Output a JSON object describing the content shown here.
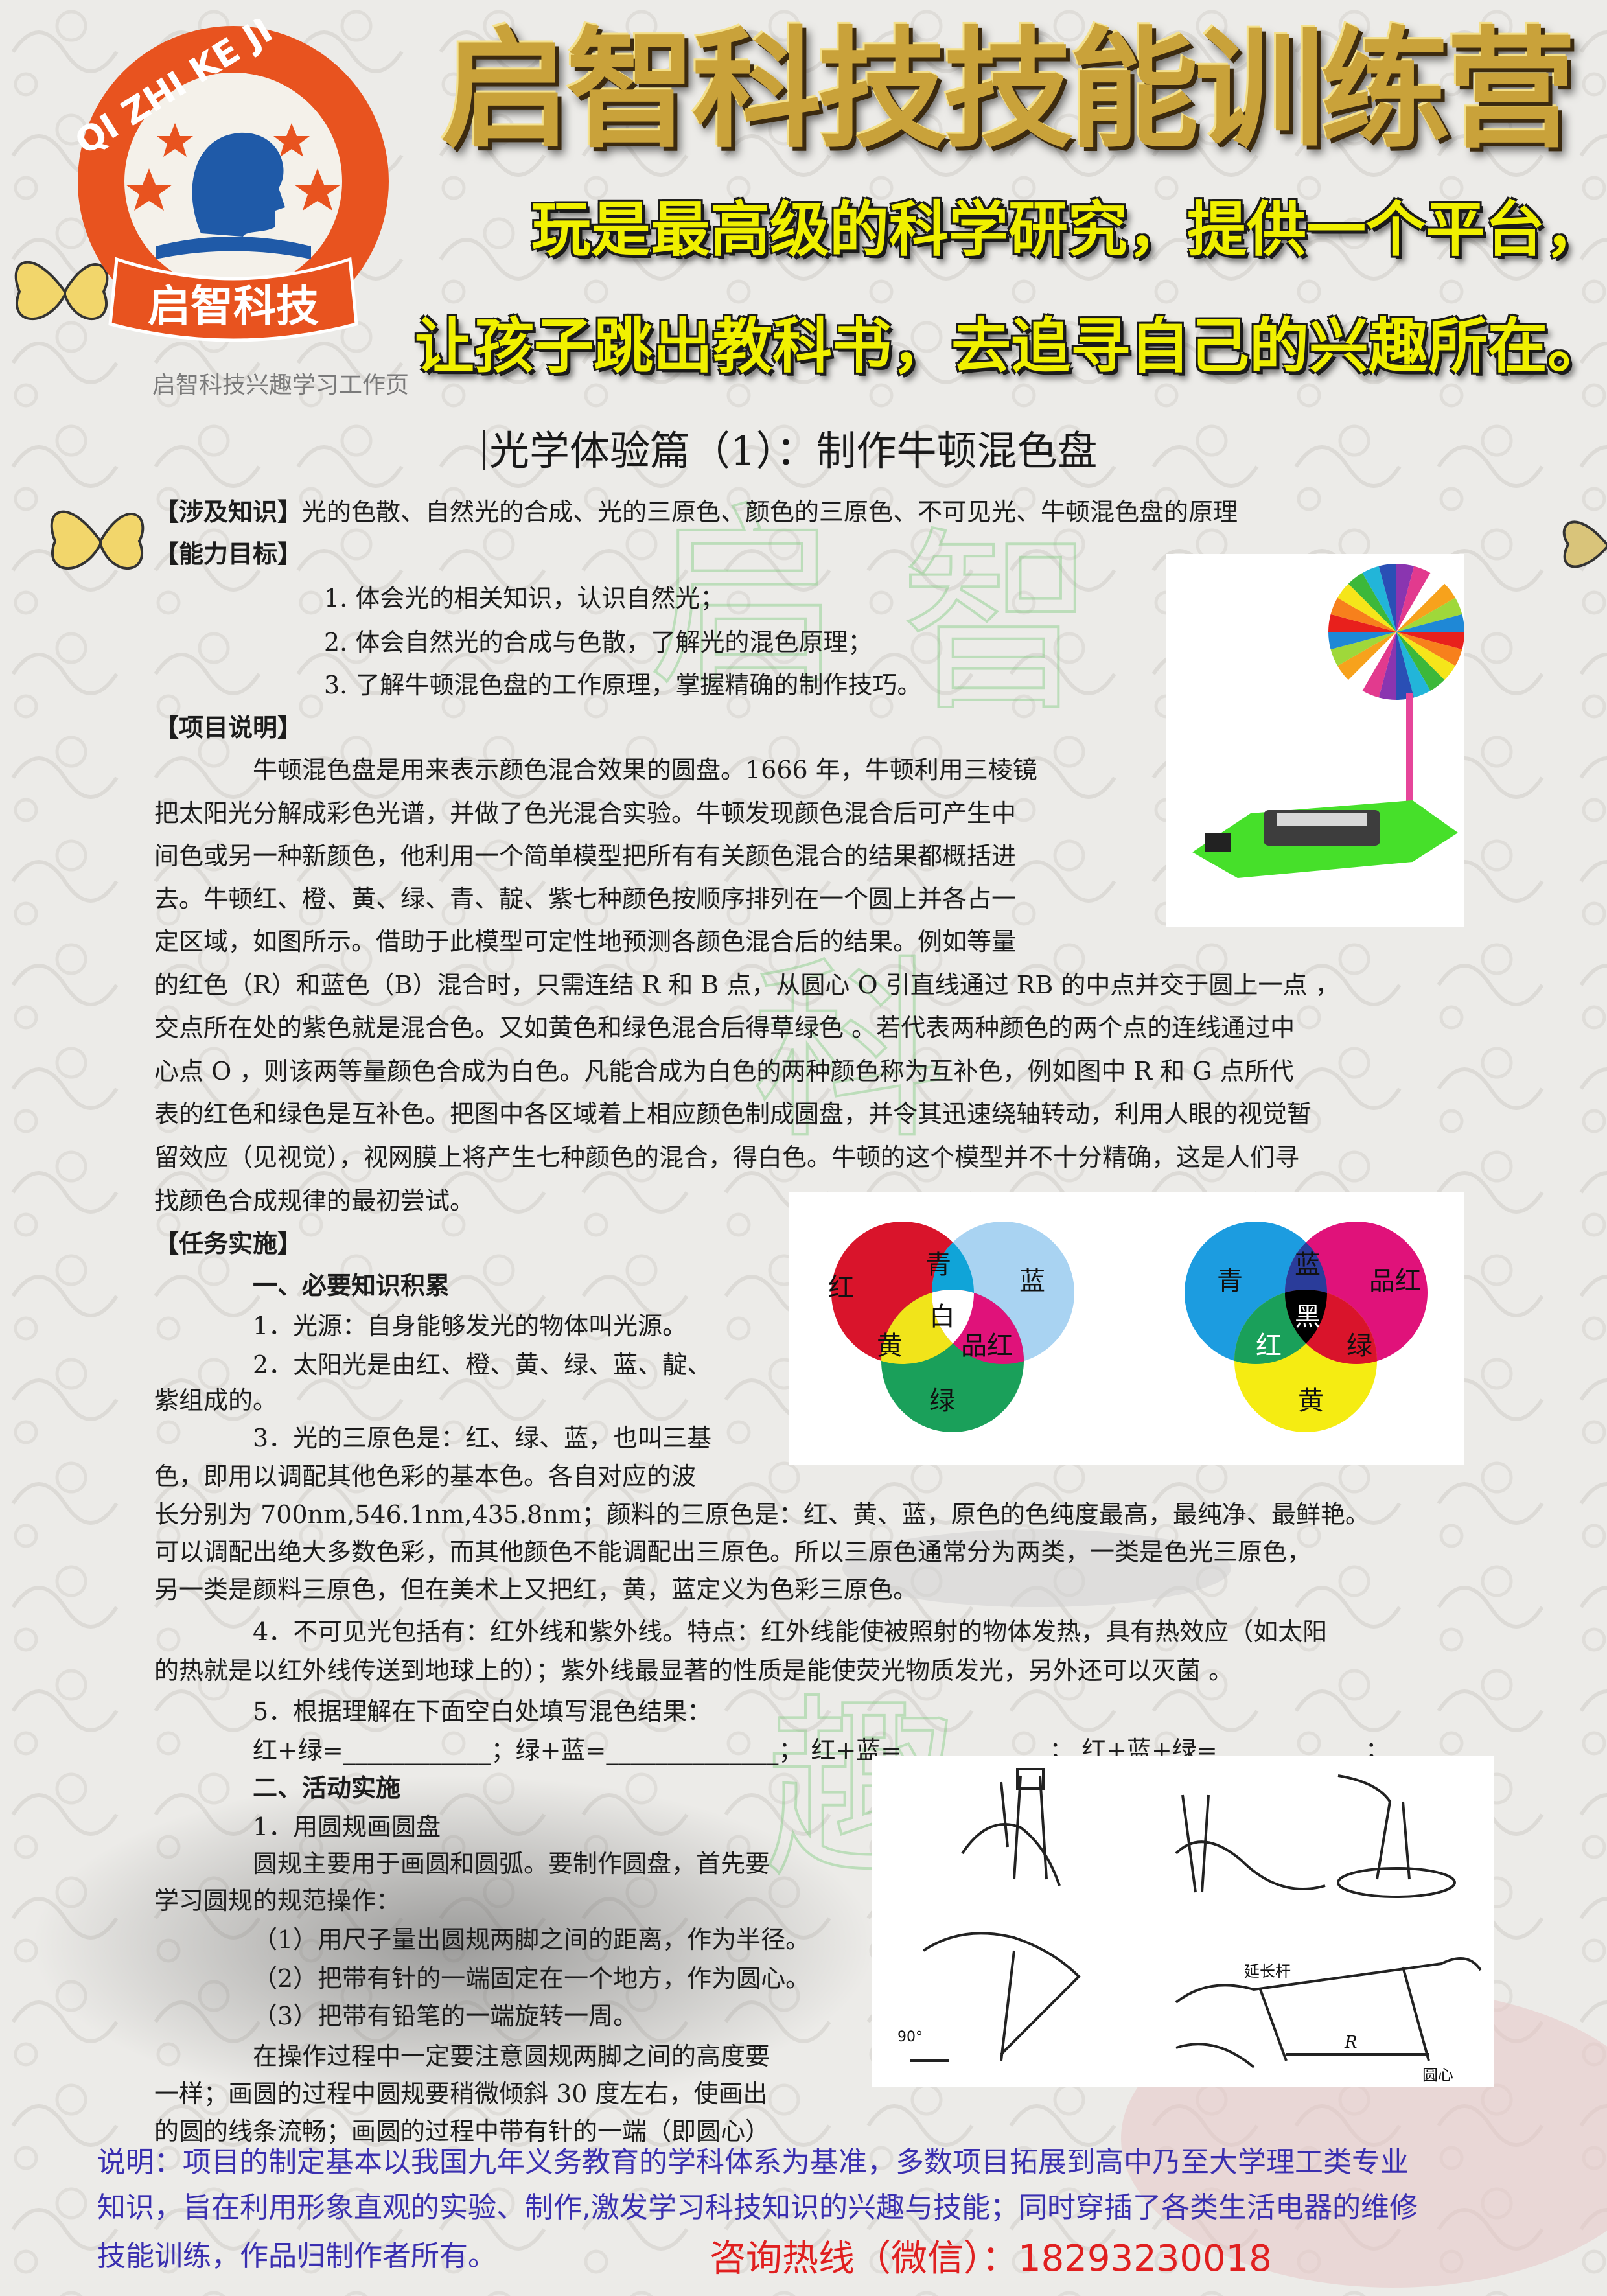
{
  "header": {
    "logo_ring_text": "QI ZHI KE JI",
    "logo_banner": "启智科技",
    "title": "启智科技技能训练营",
    "slogan_line1": "玩是最高级的科学研究，提供一个平台，",
    "slogan_line2": "让孩子跳出教科书，去追寻自己的兴趣所在。",
    "subcaption": "启智科技兴趣学习工作页"
  },
  "doc": {
    "title": "光学体验篇（1）：制作牛顿混色盘"
  },
  "sections": {
    "knowledge_label": "【涉及知识】",
    "knowledge_text": "光的色散、自然光的合成、光的三原色、颜色的三原色、不可见光、牛顿混色盘的原理",
    "goals_label": "【能力目标】",
    "goals": [
      "1.   体会光的相关知识，认识自然光；",
      "2.   体会自然光的合成与色散，了解光的混色原理；",
      "3.   了解牛顿混色盘的工作原理，掌握精确的制作技巧。"
    ],
    "desc_label": "【项目说明】",
    "desc_lines": [
      "牛顿混色盘是用来表示颜色混合效果的圆盘。1666  年，牛顿利用三棱镜",
      "把太阳光分解成彩色光谱，并做了色光混合实验。牛顿发现颜色混合后可产生中",
      "间色或另一种新颜色，他利用一个简单模型把所有有关颜色混合的结果都概括进",
      "去。牛顿红、橙、黄、绿、青、靛、紫七种颜色按顺序排列在一个圆上并各占一",
      "定区域，如图所示。借助于此模型可定性地预测各颜色混合后的结果。例如等量",
      "的红色（R）和蓝色（B）混合时，只需连结 R 和 B 点，从圆心 O 引直线通过 RB 的中点并交于圆上一点 ，",
      "交点所在处的紫色就是混合色。又如黄色和绿色混合后得草绿色 。若代表两种颜色的两个点的连线通过中",
      "心点 O ，则该两等量颜色合成为白色。凡能合成为白色的两种颜色称为互补色，例如图中 R  和 G 点所代",
      "表的红色和绿色是互补色。把图中各区域着上相应颜色制成圆盘，并令其迅速绕轴转动，利用人眼的视觉暂",
      "留效应（见视觉），视网膜上将产生七种颜色的混合，得白色。牛顿的这个模型并不十分精确，这是人们寻",
      "找颜色合成规律的最初尝试。"
    ],
    "task_label": "【任务实施】",
    "sub1": "一、必要知识积累",
    "know_lines": [
      "1．光源：自身能够发光的物体叫光源。",
      "2．太阳光是由红、橙、黄、绿、蓝、靛、",
      "紫组成的。",
      "3．光的三原色是：红、绿、蓝，也叫三基",
      "色，即用以调配其他色彩的基本色。各自对应的波",
      "长分别为 700nm,546.1nm,435.8nm；颜料的三原色是：红、黄、蓝，原色的色纯度最高，最纯净、最鲜艳。",
      "可以调配出绝大多数色彩，而其他颜色不能调配出三原色。所以三原色通常分为两类，一类是色光三原色，",
      "另一类是颜料三原色，但在美术上又把红，黄，蓝定义为色彩三原色。",
      "4．不可见光包括有：红外线和紫外线。特点：红外线能使被照射的物体发热，具有热效应（如太阳",
      "的热就是以红外线传送到地球上的）；紫外线最显著的性质是能使荧光物质发光，另外还可以灭菌  。",
      "5．根据理解在下面空白处填写混色结果：",
      "红+绿=____________；绿+蓝=______________；  红+蓝=____________；  红+蓝+绿=____________；"
    ],
    "sub2": "二、活动实施",
    "act_lines": [
      "1．用圆规画圆盘",
      "圆规主要用于画圆和圆弧。要制作圆盘，首先要",
      "学习圆规的规范操作：",
      "（1）用尺子量出圆规两脚之间的距离，作为半径。",
      "（2）把带有针的一端固定在一个地方，作为圆心。",
      "（3）把带有铅笔的一端旋转一周。",
      "在操作过程中一定要注意圆规两脚之间的高度要",
      "一样；画圆的过程中圆规要稍微倾斜 30 度左右，使画出",
      "的圆的线条流畅；画圆的过程中带有针的一端（即圆心）"
    ]
  },
  "venn_light": {
    "red": "红",
    "cyan": "青",
    "blue": "蓝",
    "white": "白",
    "yellow": "黄",
    "magenta": "品红",
    "green": "绿"
  },
  "venn_pigment": {
    "cyan": "青",
    "blue": "蓝",
    "magenta": "品红",
    "black": "黑",
    "red": "红",
    "green": "绿",
    "yellow": "黄"
  },
  "compass": {
    "ext_label": "延长杆",
    "r_label": "R",
    "center_label": "圆心",
    "angle_label": "90°"
  },
  "watermark_chars": [
    "启",
    "智",
    "科",
    "技",
    "趣"
  ],
  "footer": {
    "line1": "说明：项目的制定基本以我国九年义务教育的学科体系为基准，多数项目拓展到高中乃至大学理工类专业",
    "line2": "知识，旨在利用形象直观的实验、制作,激发学习科技知识的兴趣与技能；同时穿插了各类生活电器的维修",
    "line3": "技能训练，作品归制作者所有。",
    "hotline": "咨询热线（微信）：18293230018"
  },
  "colors": {
    "title_gold": "#c9a23a",
    "slogan_yellow": "#f0f000",
    "footer_blue": "#3a2fb0",
    "hotline_red": "#e02020",
    "logo_orange": "#e8531f"
  }
}
